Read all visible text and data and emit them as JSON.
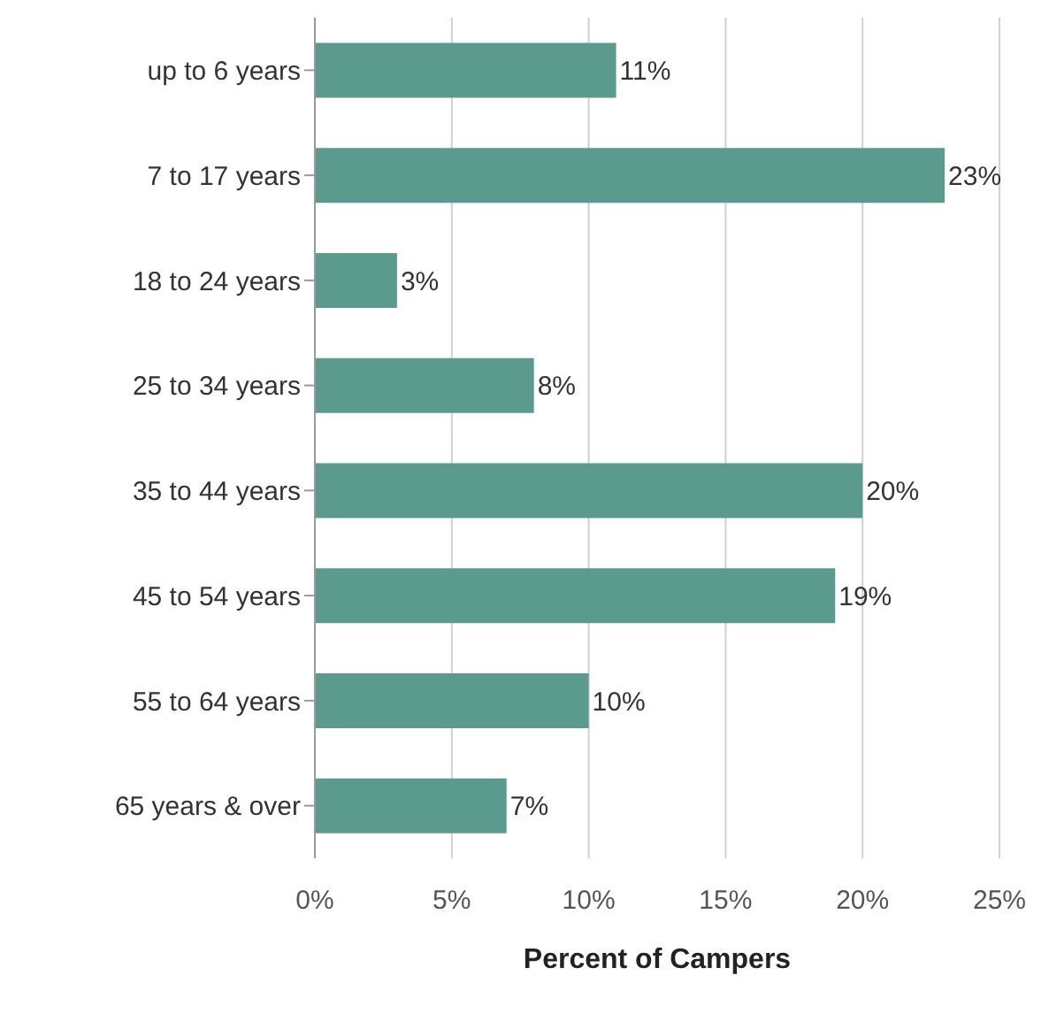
{
  "chart_data": {
    "type": "bar",
    "orientation": "horizontal",
    "xlabel": "Percent of Campers",
    "categories": [
      "up to 6 years",
      "7 to 17 years",
      "18 to 24 years",
      "25 to 34 years",
      "35 to 44 years",
      "45 to 54 years",
      "55 to 64 years",
      "65 years & over"
    ],
    "values": [
      11,
      23,
      3,
      8,
      20,
      19,
      10,
      7
    ],
    "value_labels": [
      "11%",
      "23%",
      "3%",
      "8%",
      "20%",
      "19%",
      "10%",
      "7%"
    ],
    "color": "#5b9b8e",
    "xlim": [
      0,
      25
    ],
    "xticks": [
      {
        "value": 0,
        "label": "0%"
      },
      {
        "value": 5,
        "label": "5%"
      },
      {
        "value": 10,
        "label": "10%"
      },
      {
        "value": 15,
        "label": "15%"
      },
      {
        "value": 20,
        "label": "20%"
      },
      {
        "value": 25,
        "label": "25%"
      }
    ],
    "grid": "x"
  }
}
